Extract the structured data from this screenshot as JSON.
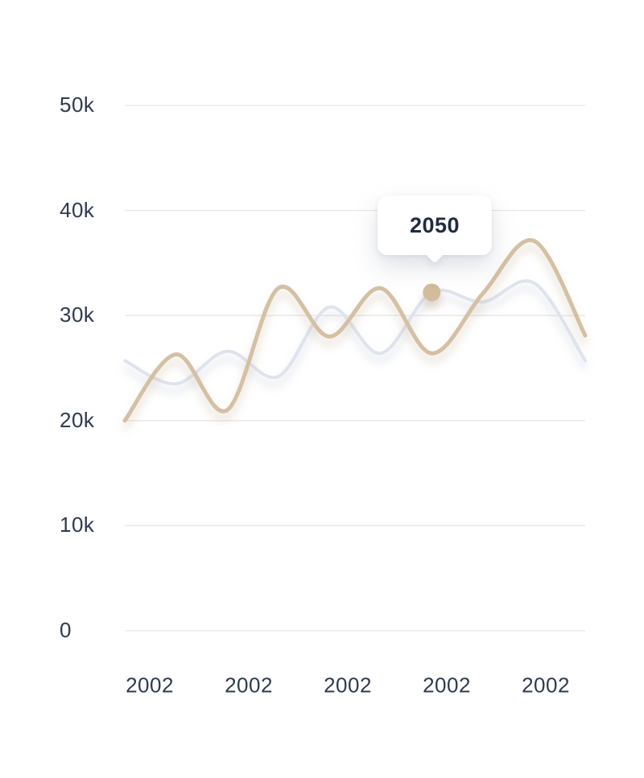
{
  "chart_data": {
    "type": "line",
    "title": "",
    "xlabel": "",
    "ylabel": "",
    "x_tick_labels": [
      "2002",
      "2002",
      "2002",
      "2002",
      "2002"
    ],
    "y_tick_labels": [
      "0",
      "10k",
      "20k",
      "30k",
      "40k",
      "50k"
    ],
    "y_tick_values": [
      0,
      10000,
      20000,
      30000,
      40000,
      50000
    ],
    "ylim": [
      0,
      50000
    ],
    "grid": "horizontal-only",
    "legend_position": "none",
    "series": [
      {
        "name": "background-series",
        "color": "#dee3ee",
        "stroke_width": 4,
        "values": [
          25700,
          23500,
          26600,
          24200,
          30800,
          26400,
          32200,
          31300,
          33100,
          25700
        ]
      },
      {
        "name": "highlight-series",
        "color": "#d4c0a3",
        "stroke_width": 5,
        "values": [
          20000,
          26300,
          21000,
          32600,
          28000,
          32600,
          26400,
          32100,
          37100,
          28100
        ]
      }
    ],
    "hover_marker": {
      "series": "background-series",
      "point_index": 6,
      "value": 32200,
      "dot_color": "#d2bc9e"
    },
    "tooltip": {
      "label": "2050"
    }
  },
  "colors": {
    "background": "#ffffff",
    "gridline": "#e8e7e5",
    "axis_label": "#2e3a4e",
    "tooltip_text": "#202c42",
    "tooltip_background": "#ffffff"
  }
}
